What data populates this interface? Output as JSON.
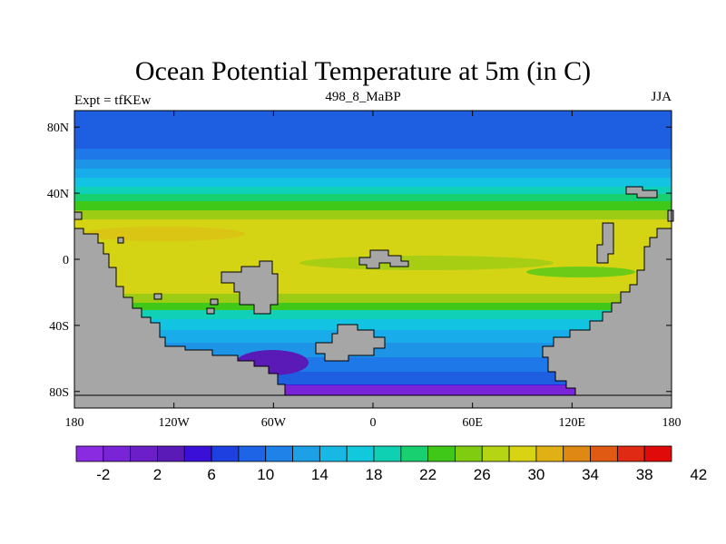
{
  "title": "Ocean Potential Temperature at 5m (in C)",
  "left_label": "Expt = tfKEw",
  "center_label": "498_8_MaBP",
  "right_label": "JJA",
  "map": {
    "projection": "cylindrical-equidistant",
    "lon_range": [
      -180,
      180
    ],
    "lat_range": [
      -90,
      90
    ],
    "land_color": "#a6a6a6",
    "x_ticks": [
      {
        "lon": -180,
        "label": "180"
      },
      {
        "lon": -120,
        "label": "120W"
      },
      {
        "lon": -60,
        "label": "60W"
      },
      {
        "lon": 0,
        "label": "0"
      },
      {
        "lon": 60,
        "label": "60E"
      },
      {
        "lon": 120,
        "label": "120E"
      },
      {
        "lon": 180,
        "label": "180"
      }
    ],
    "y_ticks": [
      {
        "lat": 80,
        "label": "80N"
      },
      {
        "lat": 40,
        "label": "40N"
      },
      {
        "lat": 0,
        "label": "0"
      },
      {
        "lat": -40,
        "label": "40S"
      },
      {
        "lat": -80,
        "label": "80S"
      }
    ]
  },
  "colorbar": {
    "colors": [
      "#8a2be2",
      "#7a24d8",
      "#6c1ec8",
      "#5a1ab8",
      "#3a10d8",
      "#1e40e0",
      "#1e64e6",
      "#1e82e8",
      "#1ea0e6",
      "#18b8e4",
      "#12c8dc",
      "#10d0b4",
      "#18d070",
      "#40c818",
      "#80cc10",
      "#b4d414",
      "#d8d414",
      "#e0b014",
      "#e08814",
      "#e05a14",
      "#e02a14",
      "#e00a0a"
    ],
    "labels": [
      "-2",
      "2",
      "6",
      "10",
      "14",
      "18",
      "22",
      "26",
      "30",
      "34",
      "38",
      "42"
    ]
  }
}
